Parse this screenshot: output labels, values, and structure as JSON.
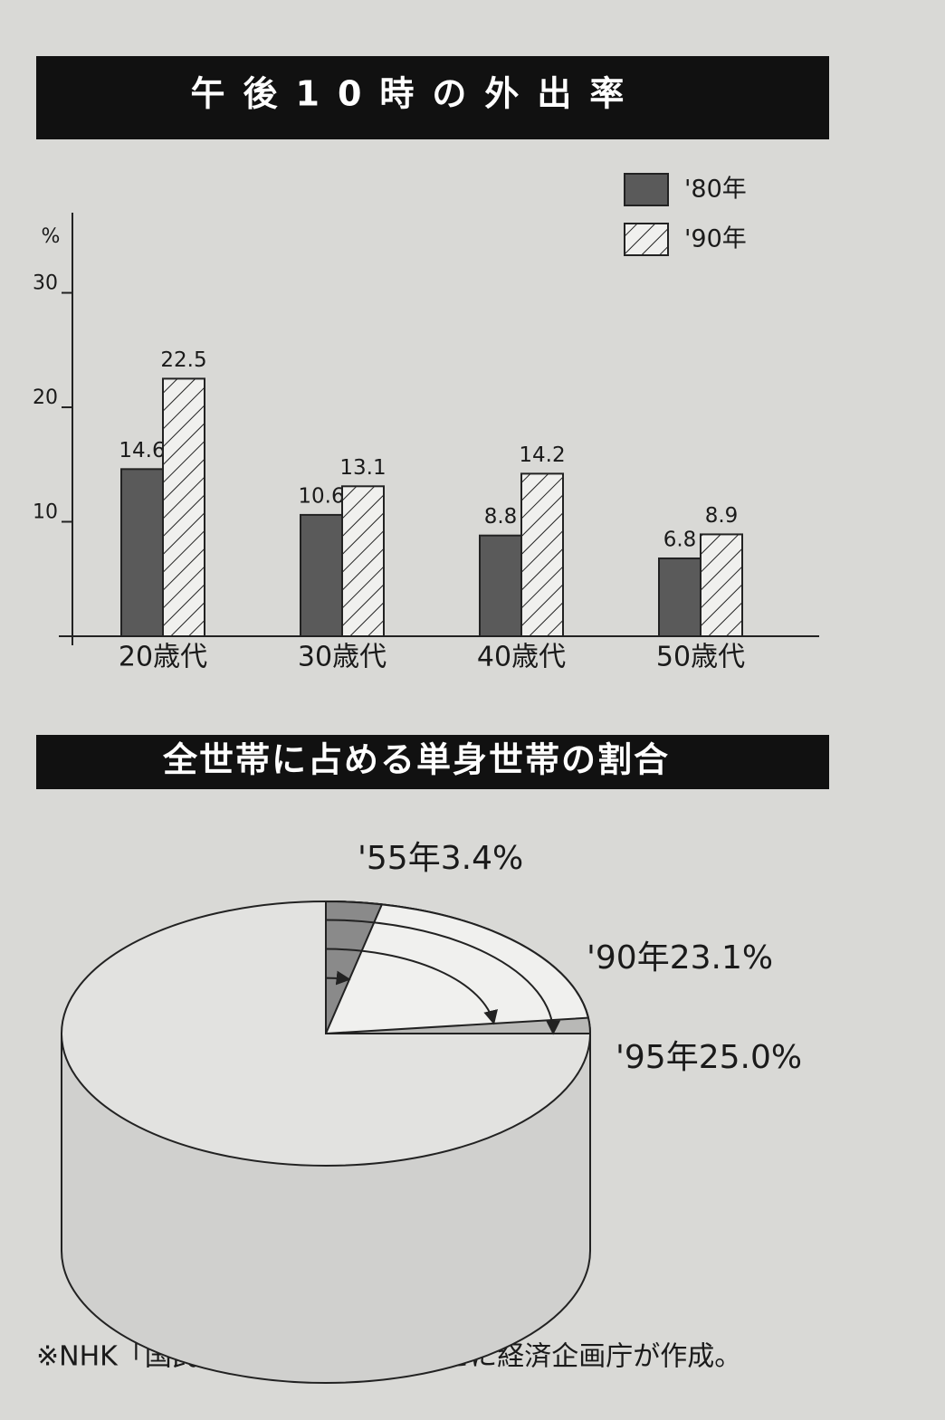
{
  "chart_data": [
    {
      "type": "bar",
      "title": "午後10時の外出率",
      "y_label": "%",
      "categories": [
        "20歳代",
        "30歳代",
        "40歳代",
        "50歳代"
      ],
      "series": [
        {
          "name": "'80年",
          "color": "#5a5a5a",
          "pattern": "solid",
          "values": [
            14.6,
            10.6,
            8.8,
            6.8
          ]
        },
        {
          "name": "'90年",
          "color": "#f0f0ee",
          "pattern": "hatch",
          "values": [
            22.5,
            13.1,
            14.2,
            8.9
          ]
        }
      ],
      "ylim": [
        0,
        37
      ],
      "yticks": [
        10,
        20,
        30
      ],
      "grid": false,
      "legend": "top-right"
    },
    {
      "type": "pie",
      "title": "全世帯に占める単身世帯の割合",
      "categories": [
        "'55年",
        "'90年",
        "'95年"
      ],
      "values": [
        3.4,
        23.1,
        25.0
      ],
      "value_labels": [
        "3.4%",
        "23.1%",
        "25.0%"
      ],
      "colors": [
        "#8a8a8a",
        "#f0f0ee",
        "#b8b8b6"
      ]
    }
  ],
  "footnote": "※NHK「国民生活時間調査」をもとに経済企画庁が作成。"
}
